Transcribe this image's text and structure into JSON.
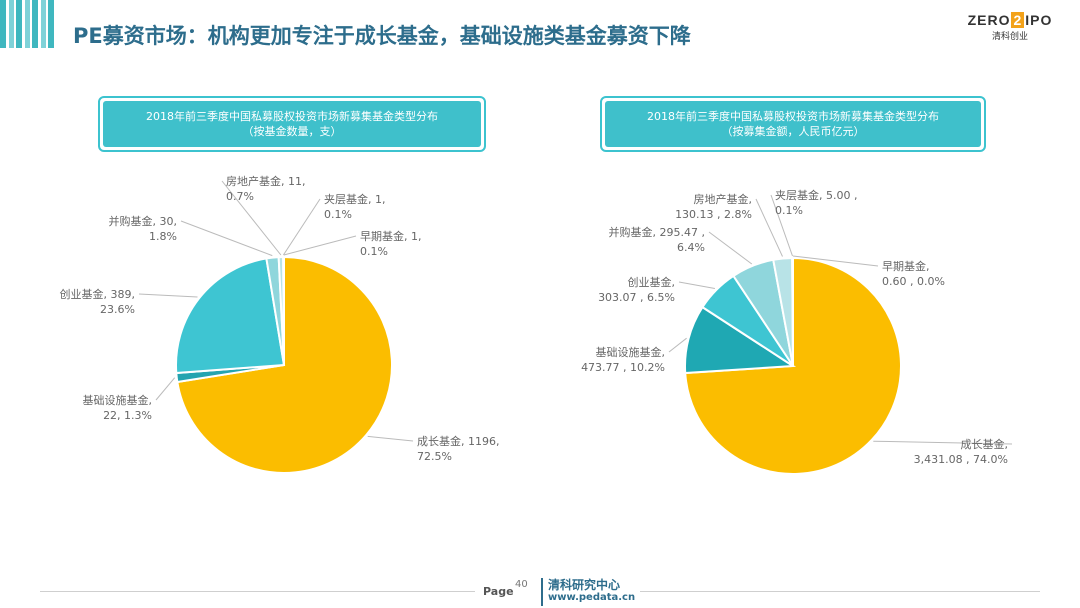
{
  "page": {
    "title": "PE募资市场：机构更加专注于成长基金，基础设施类基金募资下降",
    "logo": {
      "text_left": "ZERO",
      "text_mark": "2",
      "text_right": "IPO",
      "subtitle": "清科创业"
    },
    "footer": {
      "page_label": "Page",
      "page_number": "40",
      "org": "清科研究中心",
      "url": "www.pedata.cn"
    }
  },
  "chart_data": [
    {
      "type": "pie",
      "title": "2018年前三季度中国私募股权投资市场新募集基金类型分布",
      "subtitle": "（按基金数量，支）",
      "slices": [
        {
          "name": "成长基金",
          "value": 1196,
          "percent": 72.5,
          "color": "#fbbd00",
          "label_lines": [
            "成长基金, 1196,",
            "72.5%"
          ]
        },
        {
          "name": "基础设施基金",
          "value": 22,
          "percent": 1.3,
          "color": "#24a4b0",
          "label_lines": [
            "基础设施基金,",
            "22, 1.3%"
          ]
        },
        {
          "name": "创业基金",
          "value": 389,
          "percent": 23.6,
          "color": "#3ec5d2",
          "label_lines": [
            "创业基金, 389,",
            "23.6%"
          ]
        },
        {
          "name": "并购基金",
          "value": 30,
          "percent": 1.8,
          "color": "#8fd6dc",
          "label_lines": [
            "并购基金, 30,",
            "1.8%"
          ]
        },
        {
          "name": "房地产基金",
          "value": 11,
          "percent": 0.7,
          "color": "#b8e3e7",
          "label_lines": [
            "房地产基金, 11,",
            "0.7%"
          ]
        },
        {
          "name": "夹层基金",
          "value": 1,
          "percent": 0.1,
          "color": "#d7eef0",
          "label_lines": [
            "夹层基金, 1,",
            "0.1%"
          ]
        },
        {
          "name": "早期基金",
          "value": 1,
          "percent": 0.1,
          "color": "#e5f4f5",
          "label_lines": [
            "早期基金, 1,",
            "0.1%"
          ]
        }
      ]
    },
    {
      "type": "pie",
      "title": "2018年前三季度中国私募股权投资市场新募集基金类型分布",
      "subtitle": "（按募集金额，人民币亿元）",
      "slices": [
        {
          "name": "成长基金",
          "value": 3431.08,
          "percent": 74.0,
          "color": "#fbbd00",
          "label_lines": [
            "成长基金,",
            "3,431.08 , 74.0%"
          ]
        },
        {
          "name": "基础设施基金",
          "value": 473.77,
          "percent": 10.2,
          "color": "#1fa8b3",
          "label_lines": [
            "基础设施基金,",
            "473.77 , 10.2%"
          ]
        },
        {
          "name": "创业基金",
          "value": 303.07,
          "percent": 6.5,
          "color": "#3ec5d2",
          "label_lines": [
            "创业基金,",
            "303.07 , 6.5%"
          ]
        },
        {
          "name": "并购基金",
          "value": 295.47,
          "percent": 6.4,
          "color": "#8fd6dc",
          "label_lines": [
            "并购基金, 295.47 ,",
            "6.4%"
          ]
        },
        {
          "name": "房地产基金",
          "value": 130.13,
          "percent": 2.8,
          "color": "#b8e3e7",
          "label_lines": [
            "房地产基金,",
            "130.13 , 2.8%"
          ]
        },
        {
          "name": "夹层基金",
          "value": 5.0,
          "percent": 0.1,
          "color": "#d7eef0",
          "label_lines": [
            "夹层基金, 5.00 ,",
            "0.1%"
          ]
        },
        {
          "name": "早期基金",
          "value": 0.6,
          "percent": 0.0,
          "color": "#e5f4f5",
          "label_lines": [
            "早期基金,",
            "0.60 , 0.0%"
          ]
        }
      ]
    }
  ]
}
